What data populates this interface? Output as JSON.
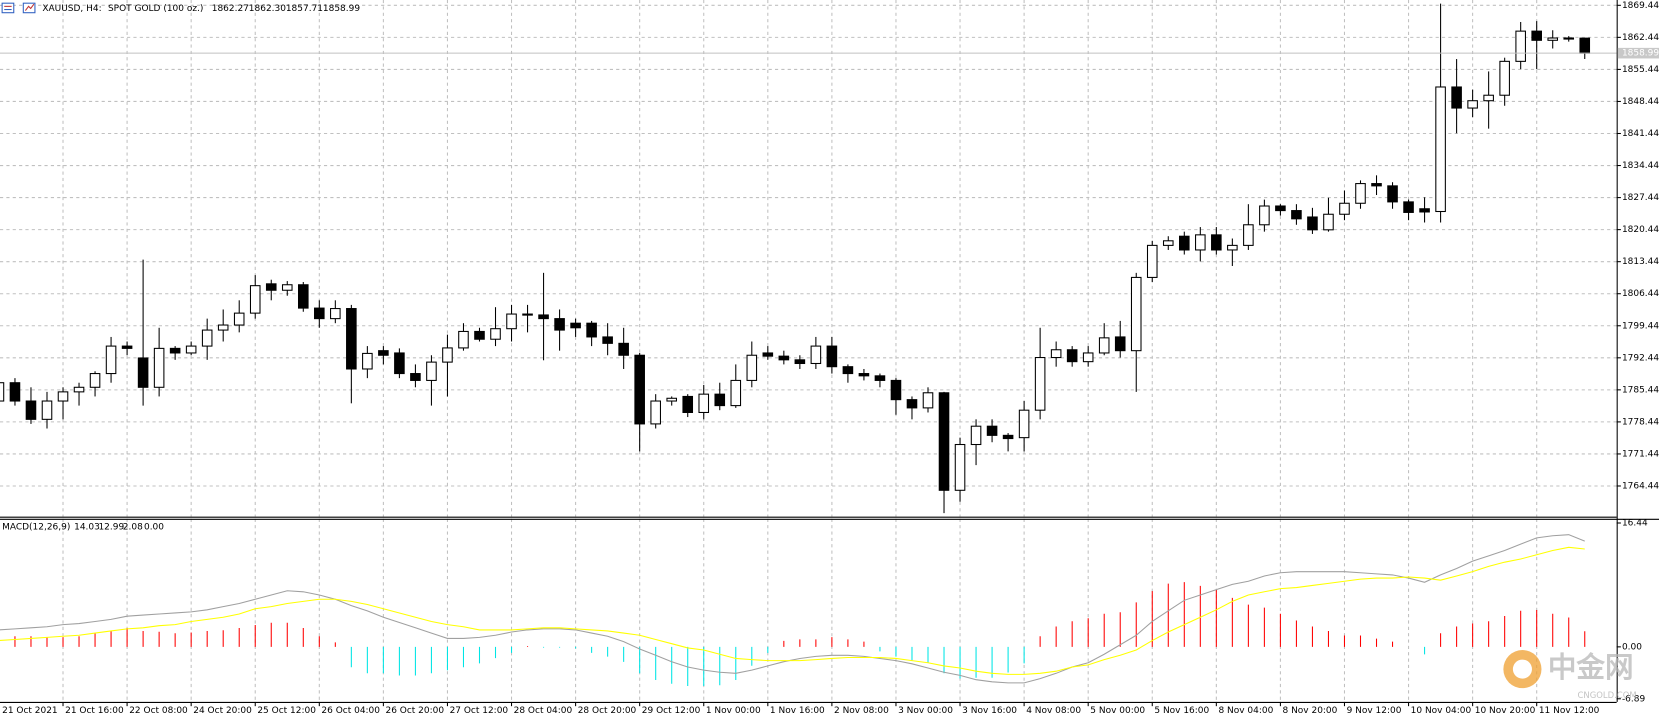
{
  "chart_data": {
    "type": "candlestick",
    "symbol": "XAUUSD, H4:",
    "title": "SPOT GOLD (100 oz.)",
    "quote_labels": [
      "1862.27",
      "1862.30",
      "1857.71",
      "1858.99"
    ],
    "categories": [
      "21 Oct 2021",
      null,
      null,
      null,
      "21 Oct 16:00",
      null,
      null,
      null,
      "22 Oct 08:00",
      null,
      null,
      null,
      "24 Oct 20:00",
      null,
      null,
      null,
      "25 Oct 12:00",
      null,
      null,
      null,
      "26 Oct 04:00",
      null,
      null,
      null,
      "26 Oct 20:00",
      null,
      null,
      null,
      "27 Oct 12:00",
      null,
      null,
      null,
      "28 Oct 04:00",
      null,
      null,
      null,
      "28 Oct 20:00",
      null,
      null,
      null,
      "29 Oct 12:00",
      null,
      null,
      null,
      "1 Nov 00:00",
      null,
      null,
      null,
      "1 Nov 16:00",
      null,
      null,
      null,
      "2 Nov 08:00",
      null,
      null,
      null,
      "3 Nov 00:00",
      null,
      null,
      null,
      "3 Nov 16:00",
      null,
      null,
      null,
      "4 Nov 08:00",
      null,
      null,
      null,
      "5 Nov 00:00",
      null,
      null,
      null,
      "5 Nov 16:00",
      null,
      null,
      null,
      "8 Nov 04:00",
      null,
      null,
      null,
      "8 Nov 20:00",
      null,
      null,
      null,
      "9 Nov 12:00",
      null,
      null,
      null,
      "10 Nov 04:00",
      null,
      null,
      null,
      "10 Nov 20:00",
      null,
      null,
      null,
      "11 Nov 12:00",
      null,
      null,
      null
    ],
    "open": [
      1783,
      1787,
      1783,
      1779,
      1783,
      1785,
      1786,
      1789,
      1795,
      1792.4,
      1786,
      1794.5,
      1793.5,
      1795,
      1798.5,
      1799.6,
      1802.2,
      1808.6,
      1807.2,
      1808.4,
      1803.3,
      1801,
      1803.2,
      1790,
      1794,
      1793.5,
      1789,
      1787.5,
      1791.5,
      1794.6,
      1798.2,
      1796.5,
      1798.8,
      1802,
      1801.8,
      1801,
      1800,
      1800,
      1797,
      1795.6,
      1793,
      1778,
      1783,
      1784,
      1780.5,
      1784.5,
      1782,
      1787.5,
      1793.5,
      1792.8,
      1792,
      1791.2,
      1795,
      1790.5,
      1789,
      1788.5,
      1787.5,
      1783.3,
      1781.5,
      1784.8,
      1763.5,
      1773.5,
      1777.5,
      1775.5,
      1775,
      1781,
      1792.5,
      1794.2,
      1791.6,
      1793.5,
      1797,
      1794,
      1810,
      1817,
      1819,
      1816,
      1819.3,
      1816,
      1817,
      1821.5,
      1825.6,
      1824.6,
      1823.2,
      1820.4,
      1823.8,
      1826.2,
      1830.5,
      1830,
      1826.5,
      1825,
      1824.4,
      1851.6,
      1847,
      1848.6,
      1849.8,
      1857.2,
      1863.8,
      1861.8,
      1862.2,
      1862.27
    ],
    "high": [
      1787.5,
      1788,
      1786,
      1785,
      1786,
      1787,
      1789.5,
      1797,
      1796,
      1813.9,
      1799,
      1795,
      1796,
      1801,
      1803,
      1805,
      1810.5,
      1809.5,
      1809.2,
      1809,
      1805,
      1805,
      1804,
      1795,
      1795,
      1794.5,
      1791,
      1793,
      1797.5,
      1800,
      1799,
      1803.5,
      1804,
      1804,
      1811,
      1803,
      1801,
      1800.5,
      1800,
      1799,
      1793.5,
      1784.5,
      1784,
      1784.5,
      1786.5,
      1787,
      1791,
      1796,
      1795,
      1794,
      1793,
      1797,
      1797,
      1791,
      1790,
      1789,
      1788,
      1784,
      1786,
      1785,
      1775,
      1779,
      1779,
      1776,
      1783,
      1799,
      1796,
      1795,
      1795,
      1800,
      1800.5,
      1811,
      1818,
      1819,
      1820,
      1821,
      1821,
      1818.5,
      1826,
      1827,
      1826,
      1826,
      1825.2,
      1827.4,
      1829,
      1831.2,
      1832.3,
      1830.8,
      1827,
      1827.5,
      1869.8,
      1857.7,
      1851,
      1855,
      1858,
      1865.8,
      1866,
      1864,
      1862.7,
      1862.3
    ],
    "low": [
      1781,
      1782,
      1778,
      1777,
      1779,
      1782,
      1784,
      1787,
      1793,
      1782,
      1784,
      1792,
      1793,
      1792,
      1796,
      1798,
      1801,
      1805,
      1806,
      1802.5,
      1799,
      1800,
      1782.5,
      1788,
      1791,
      1788,
      1786,
      1782,
      1784,
      1794,
      1796,
      1795,
      1796,
      1798,
      1791.9,
      1794,
      1797,
      1795,
      1793,
      1790,
      1772,
      1777,
      1782,
      1779.5,
      1779,
      1781,
      1781.5,
      1786,
      1792,
      1791,
      1790,
      1790,
      1789,
      1787,
      1787.5,
      1786,
      1780,
      1779,
      1780.5,
      1758.5,
      1761,
      1769,
      1774,
      1772,
      1772,
      1779,
      1790.5,
      1790.5,
      1790.5,
      1793,
      1792.5,
      1785,
      1809,
      1816,
      1815,
      1813.5,
      1815,
      1812.5,
      1816,
      1820,
      1823.5,
      1821.5,
      1819.5,
      1820,
      1822.5,
      1825,
      1828,
      1825,
      1822.5,
      1822,
      1822,
      1841.5,
      1845,
      1842.5,
      1847.5,
      1855.5,
      1855.5,
      1860,
      1861.5,
      1857.71
    ],
    "close": [
      1787,
      1783,
      1779,
      1783,
      1785,
      1786,
      1789,
      1795,
      1794.5,
      1786,
      1794.5,
      1793.5,
      1795,
      1798.5,
      1799.6,
      1802.2,
      1808.2,
      1807.2,
      1808.4,
      1803.3,
      1801,
      1803.2,
      1790,
      1793.4,
      1793,
      1789,
      1787.5,
      1791.5,
      1794.6,
      1798.2,
      1796.5,
      1798.8,
      1802,
      1801.8,
      1801,
      1798.5,
      1799,
      1797,
      1795.6,
      1793,
      1778,
      1783,
      1783.6,
      1780.5,
      1784.5,
      1782,
      1787.5,
      1793,
      1792.8,
      1792,
      1791.2,
      1795,
      1790.5,
      1789,
      1788.5,
      1787.5,
      1783.3,
      1781.5,
      1784.8,
      1763.5,
      1773.5,
      1777.5,
      1775.5,
      1774.8,
      1781,
      1792.5,
      1794.2,
      1791.6,
      1793.5,
      1796.8,
      1794,
      1810,
      1817,
      1818,
      1816,
      1819.3,
      1816,
      1817,
      1821.5,
      1825.6,
      1824.6,
      1822.8,
      1820.4,
      1823.8,
      1826.2,
      1830.5,
      1830,
      1826.5,
      1824.2,
      1824.3,
      1851.6,
      1847,
      1848.6,
      1849.8,
      1857.2,
      1863.8,
      1861.8,
      1862.3,
      1862.3,
      1858.99
    ],
    "bull_color": "#ffffff",
    "bear_color": "#000000",
    "ylim": [
      1757.74,
      1870.6
    ],
    "yticks": [
      1869.44,
      1862.44,
      1855.44,
      1848.44,
      1841.44,
      1834.44,
      1827.44,
      1820.44,
      1813.44,
      1806.44,
      1799.44,
      1792.44,
      1785.44,
      1778.44,
      1771.44,
      1764.44
    ],
    "grid": true,
    "indicator": {
      "type": "macd",
      "title": "MACD(12,26,9)",
      "fourth_value": {
        "value": 0,
        "label": "0.00"
      },
      "ylim": [
        -7.31,
        17.0
      ],
      "yticks": [
        16.44,
        {
          "value": 0,
          "label": "0.00"
        },
        -6.89
      ],
      "histogram": {
        "up_color": "#ff0000",
        "down_color": "#00e5e5",
        "values": [
          1.4,
          1.4,
          1.4,
          1.3,
          1.3,
          1.4,
          1.8,
          2.1,
          2.5,
          2.1,
          2.0,
          1.8,
          1.9,
          2.1,
          2.2,
          2.5,
          2.9,
          3.2,
          3.2,
          2.5,
          1.4,
          0.6,
          -2.7,
          -3.5,
          -3.5,
          -3.8,
          -3.8,
          -3.5,
          -3.1,
          -2.7,
          -2.2,
          -1.5,
          -0.8,
          0.1,
          -0.1,
          -0.1,
          -0.2,
          -0.8,
          -1.3,
          -2.0,
          -3.5,
          -4.4,
          -4.9,
          -5.2,
          -5.2,
          -5.1,
          -4.4,
          -2.5,
          -0.8,
          0.8,
          1.0,
          1.0,
          1.3,
          1.0,
          0.7,
          -0.6,
          -1.3,
          -1.8,
          -2.1,
          -3.5,
          -4.2,
          -4.1,
          -4.1,
          -3.4,
          -2.2,
          1.4,
          2.7,
          3.4,
          3.8,
          4.4,
          4.6,
          5.9,
          7.4,
          8.4,
          8.6,
          8.1,
          7.6,
          6.5,
          5.6,
          5.2,
          4.4,
          3.5,
          2.7,
          2.1,
          1.5,
          1.5,
          1.1,
          0.7,
          0,
          -1.0,
          1.8,
          2.7,
          3.1,
          3.4,
          4.1,
          4.8,
          4.9,
          4.4,
          3.9,
          2.08
        ]
      },
      "lines": [
        {
          "color": "#a0a0a0",
          "values": [
            2.25,
            2.39,
            2.53,
            2.67,
            2.95,
            3.09,
            3.37,
            3.65,
            4.07,
            4.22,
            4.36,
            4.5,
            4.64,
            4.92,
            5.34,
            5.76,
            6.32,
            6.88,
            7.45,
            7.31,
            6.88,
            6.32,
            5.48,
            4.78,
            3.93,
            3.23,
            2.53,
            1.83,
            1.12,
            1.12,
            1.26,
            1.54,
            1.97,
            2.25,
            2.39,
            2.39,
            2.25,
            1.83,
            1.41,
            0.7,
            -0.28,
            -1.12,
            -1.97,
            -2.67,
            -3.09,
            -3.37,
            -3.51,
            -3.09,
            -2.53,
            -1.97,
            -1.54,
            -1.26,
            -1.12,
            -1.12,
            -1.26,
            -1.54,
            -1.83,
            -2.25,
            -2.81,
            -3.37,
            -3.79,
            -4.36,
            -4.64,
            -4.78,
            -4.78,
            -4.22,
            -3.51,
            -2.67,
            -2.11,
            -0.98,
            0.28,
            1.54,
            3.37,
            4.78,
            6.18,
            6.88,
            7.59,
            8.29,
            8.71,
            9.41,
            9.84,
            9.98,
            9.98,
            9.98,
            9.98,
            9.84,
            9.69,
            9.55,
            9.13,
            8.57,
            9.55,
            10.4,
            11.38,
            12.08,
            12.79,
            13.63,
            14.47,
            14.75,
            14.89,
            14.03
          ]
        },
        {
          "color": "#ffff00",
          "values": [
            0.84,
            0.98,
            1.12,
            1.26,
            1.41,
            1.54,
            1.83,
            2.11,
            2.39,
            2.53,
            2.81,
            2.95,
            3.37,
            3.65,
            3.93,
            4.36,
            5.06,
            5.34,
            5.76,
            6.04,
            6.32,
            6.32,
            6.04,
            5.62,
            5.06,
            4.5,
            3.93,
            3.37,
            2.95,
            2.67,
            2.25,
            2.25,
            2.25,
            2.39,
            2.53,
            2.53,
            2.39,
            2.25,
            2.11,
            1.83,
            1.54,
            0.98,
            0.42,
            -0.14,
            -0.42,
            -0.98,
            -1.54,
            -1.69,
            -1.83,
            -1.83,
            -1.83,
            -1.69,
            -1.54,
            -1.41,
            -1.41,
            -1.41,
            -1.54,
            -1.83,
            -2.11,
            -2.53,
            -2.81,
            -3.23,
            -3.51,
            -3.65,
            -3.65,
            -3.51,
            -3.23,
            -2.67,
            -2.39,
            -1.69,
            -1.12,
            -0.42,
            0.84,
            1.97,
            2.95,
            3.93,
            4.92,
            6.04,
            6.88,
            7.31,
            7.73,
            7.87,
            8.15,
            8.43,
            8.71,
            8.99,
            9.13,
            9.13,
            9.27,
            9.13,
            8.85,
            9.41,
            9.98,
            10.68,
            11.24,
            11.66,
            12.22,
            12.79,
            13.21,
            12.99
          ]
        }
      ]
    },
    "watermark": {
      "text": "中金网",
      "site": "CNGOLD.COM"
    }
  }
}
